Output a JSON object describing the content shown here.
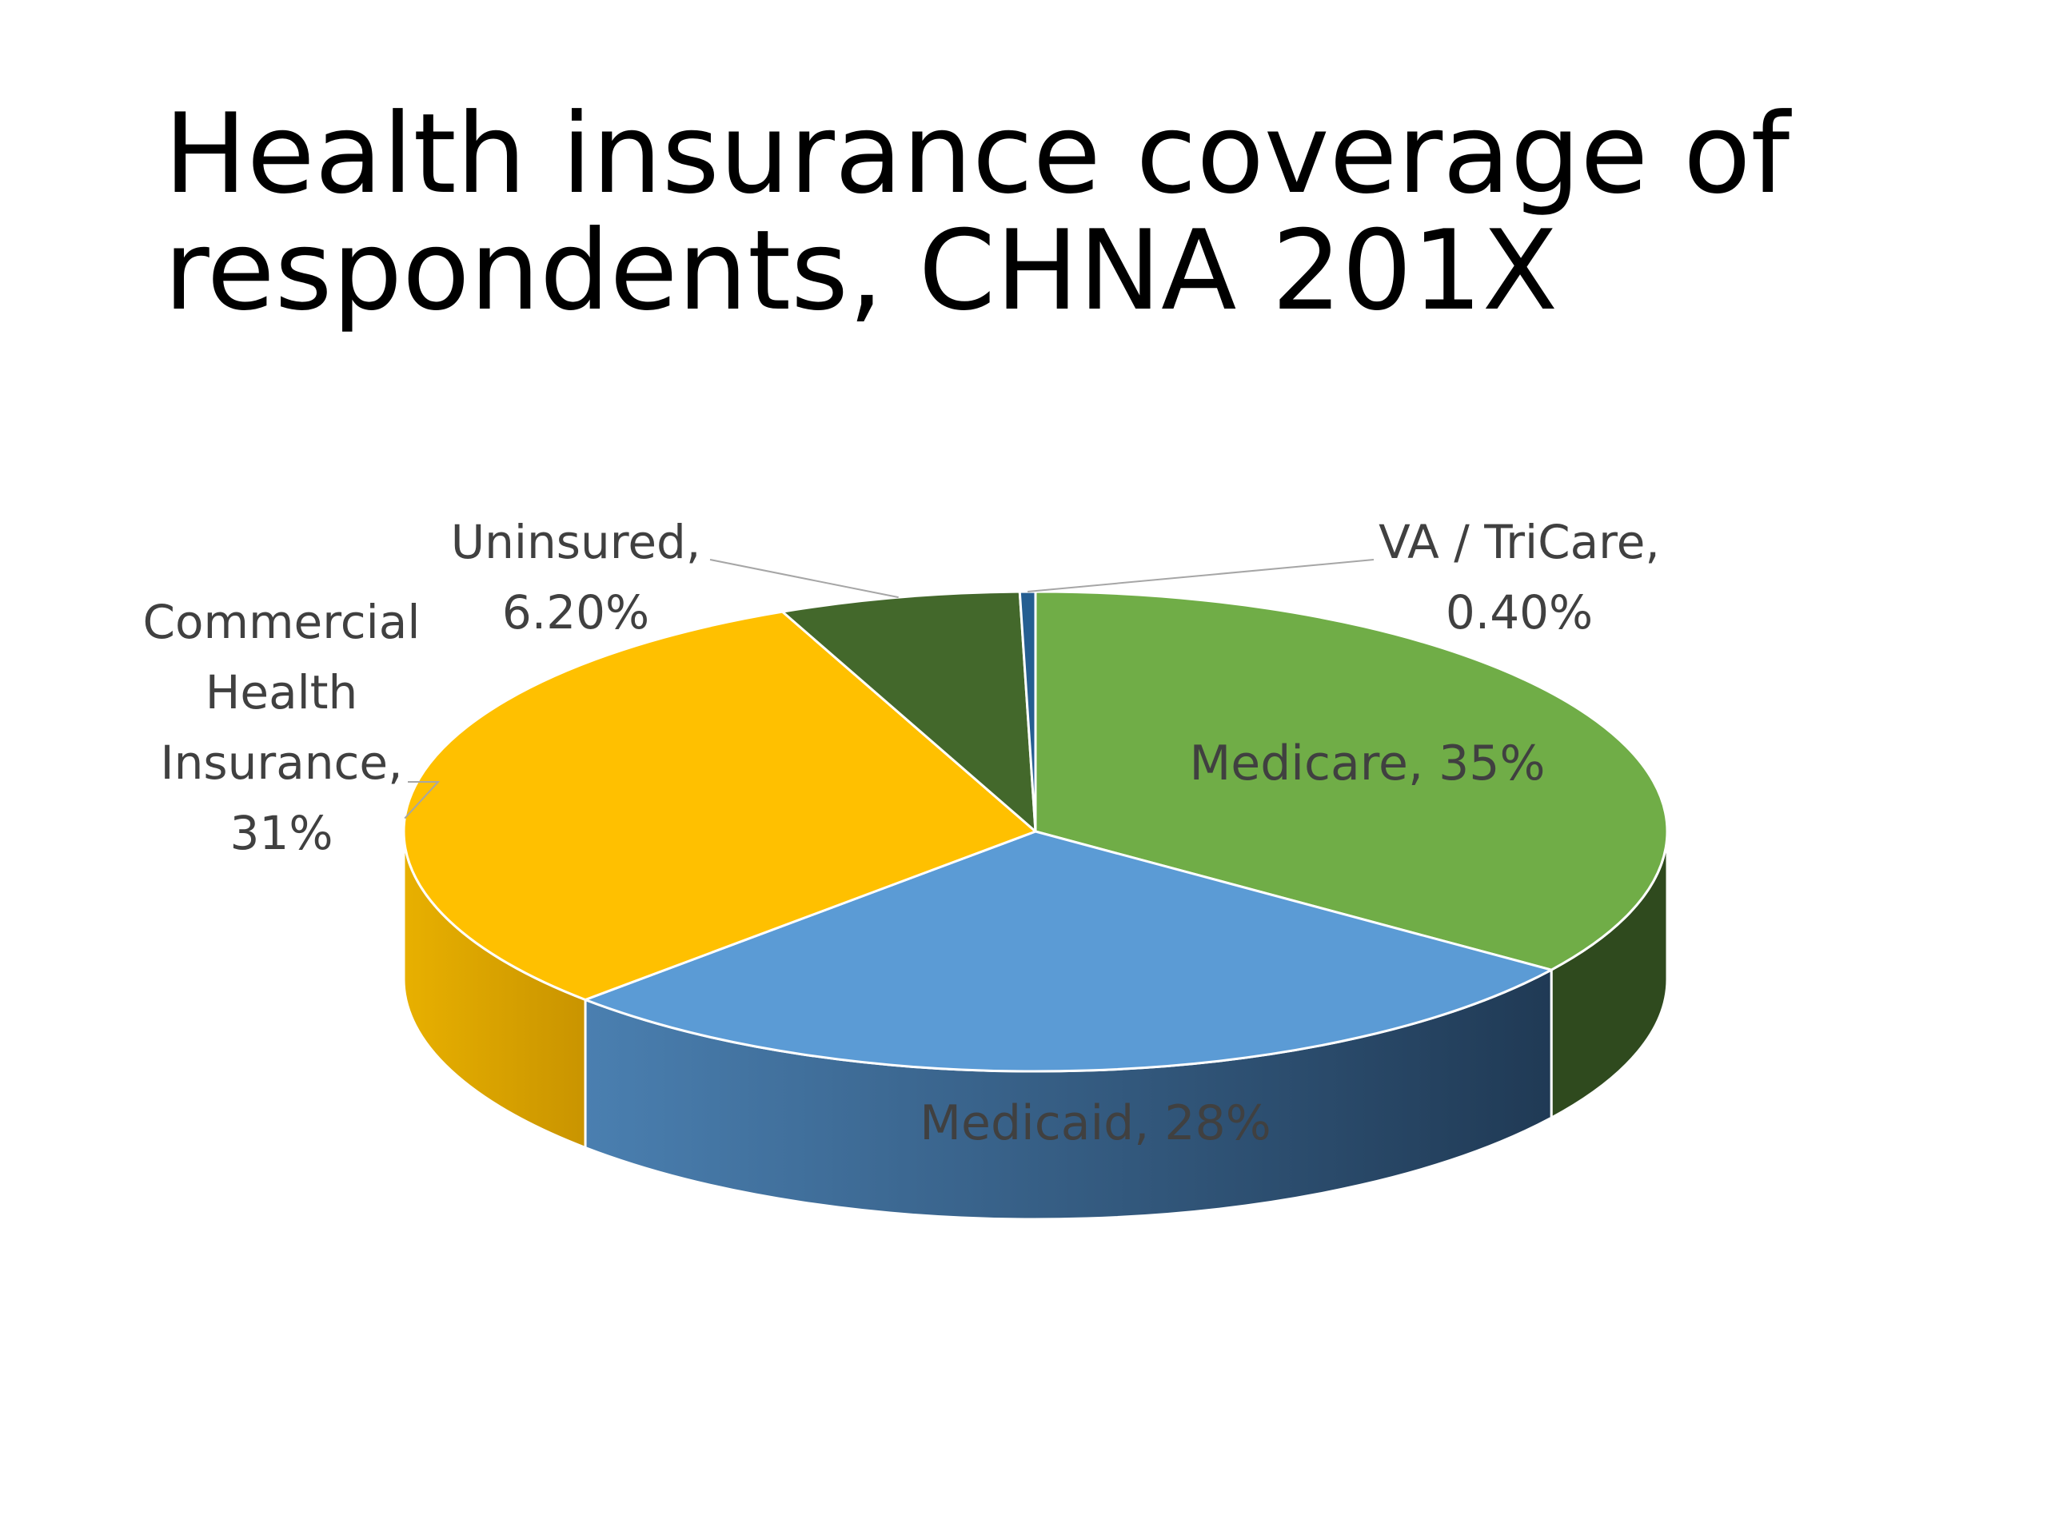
{
  "title": "Health insurance coverage of respondents, CHNA 201X",
  "chart_data": {
    "type": "pie",
    "style": "3d",
    "title": "Health insurance coverage of respondents, CHNA 201X",
    "legend": "none",
    "slices": [
      {
        "name": "Medicare",
        "value": 35,
        "label": "Medicare, 35%",
        "color": "#70AD47",
        "side_color": "#2F4A1E"
      },
      {
        "name": "Medicaid",
        "value": 28,
        "label": "Medicaid, 28%",
        "color": "#5B9BD5",
        "side_color": "#2E5378"
      },
      {
        "name": "Commercial Health Insurance",
        "value": 31,
        "label_lines": [
          "Commercial",
          "Health",
          "Insurance,",
          "31%"
        ],
        "color": "#FFC000",
        "side_color": "#C99A05"
      },
      {
        "name": "Uninsured",
        "value": 6.2,
        "label_lines": [
          "Uninsured,",
          "6.20%"
        ],
        "color": "#43682B",
        "side_color": "#2A4219"
      },
      {
        "name": "VA / TriCare",
        "value": 0.4,
        "label_lines": [
          "VA / TriCare,",
          "0.40%"
        ],
        "color": "#255E91",
        "side_color": "#1B4469"
      }
    ]
  }
}
